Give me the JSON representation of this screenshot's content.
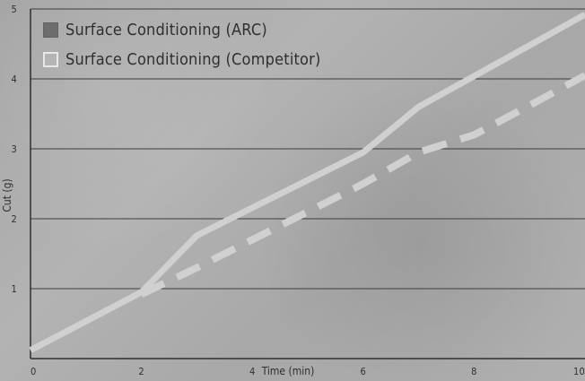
{
  "chart_data": {
    "type": "line",
    "title": "",
    "xlabel": "Time (min)",
    "ylabel": "Cut (g)",
    "xlim": [
      0,
      10
    ],
    "ylim": [
      0,
      5
    ],
    "x_ticks": [
      0,
      2,
      4,
      6,
      8,
      10
    ],
    "y_ticks": [
      1,
      2,
      3,
      4,
      5
    ],
    "grid": {
      "horizontal": true,
      "vertical": false
    },
    "legend": {
      "position": "top-left",
      "items": [
        {
          "label": "Surface Conditioning (ARC)",
          "swatch": "filled-square",
          "color": "#6d6d6d"
        },
        {
          "label": "Surface Conditioning (Competitor)",
          "swatch": "outlined-square",
          "color": "#e8e8e8"
        }
      ]
    },
    "series": [
      {
        "name": "Surface Conditioning (ARC)",
        "style": "solid",
        "color": "#d0d0d0",
        "points": [
          {
            "x": 0,
            "y": 0.12
          },
          {
            "x": 2,
            "y": 0.95
          },
          {
            "x": 3,
            "y": 1.76
          },
          {
            "x": 6,
            "y": 2.95
          },
          {
            "x": 7,
            "y": 3.6
          },
          {
            "x": 10,
            "y": 4.92
          }
        ]
      },
      {
        "name": "Surface Conditioning (Competitor)",
        "style": "dashed",
        "color": "#d0d0d0",
        "points": [
          {
            "x": 2,
            "y": 0.92
          },
          {
            "x": 3,
            "y": 1.3
          },
          {
            "x": 4,
            "y": 1.7
          },
          {
            "x": 5,
            "y": 2.1
          },
          {
            "x": 6,
            "y": 2.5
          },
          {
            "x": 7,
            "y": 2.95
          },
          {
            "x": 8,
            "y": 3.2
          },
          {
            "x": 9,
            "y": 3.62
          },
          {
            "x": 10,
            "y": 4.05
          }
        ]
      }
    ]
  }
}
